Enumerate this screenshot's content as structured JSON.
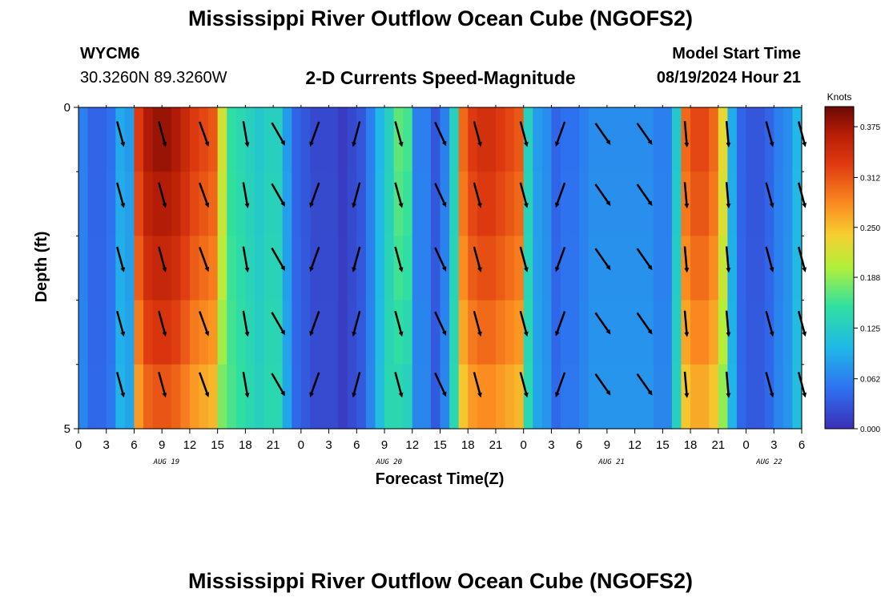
{
  "header": {
    "title": "Mississippi River Outflow Ocean Cube (NGOFS2)",
    "station_id": "WYCM6",
    "coordinates": "30.3260N  89.3260W",
    "subtitle": "2-D Currents Speed-Magnitude",
    "model_start_label": "Model Start Time",
    "model_start_time": "08/19/2024 Hour 21"
  },
  "footer": {
    "title": "Mississippi River Outflow Ocean Cube (NGOFS2)"
  },
  "chart_data": {
    "type": "heatmap",
    "xlabel": "Forecast Time(Z)",
    "ylabel": "Depth (ft)",
    "x_ticks": [
      "0",
      "3",
      "6",
      "9",
      "12",
      "15",
      "18",
      "21",
      "0",
      "3",
      "6",
      "9",
      "12",
      "15",
      "18",
      "21",
      "0",
      "3",
      "6",
      "9",
      "12",
      "15",
      "18",
      "21",
      "0",
      "3",
      "6"
    ],
    "date_labels": [
      {
        "label": "AUG 19",
        "hour": 9.5
      },
      {
        "label": "AUG 20",
        "hour": 33.5
      },
      {
        "label": "AUG 21",
        "hour": 57.5
      },
      {
        "label": "AUG 22",
        "hour": 74.5
      }
    ],
    "y_ticks": [
      "0",
      "5"
    ],
    "ylim": [
      0,
      5
    ],
    "xlim_hours": [
      0,
      78
    ],
    "colorbar": {
      "unit": "Knots",
      "min": 0,
      "max": 0.4,
      "tick_labels": [
        "0.375",
        "0.312",
        "0.250",
        "0.188",
        "0.125",
        "0.062",
        "0.000"
      ],
      "tick_values": [
        0.375,
        0.312,
        0.25,
        0.188,
        0.125,
        0.062,
        0.0
      ]
    },
    "speed_profile_knots": [
      0.06,
      0.04,
      0.04,
      0.05,
      0.09,
      0.08,
      0.33,
      0.37,
      0.38,
      0.38,
      0.37,
      0.35,
      0.33,
      0.32,
      0.31,
      0.22,
      0.15,
      0.14,
      0.13,
      0.12,
      0.13,
      0.13,
      0.08,
      0.04,
      0.03,
      0.02,
      0.02,
      0.02,
      0.01,
      0.02,
      0.03,
      0.06,
      0.1,
      0.13,
      0.17,
      0.16,
      0.06,
      0.06,
      0.03,
      0.06,
      0.13,
      0.3,
      0.33,
      0.34,
      0.34,
      0.33,
      0.32,
      0.31,
      0.13,
      0.08,
      0.07,
      0.04,
      0.05,
      0.05,
      0.06,
      0.07,
      0.07,
      0.07,
      0.07,
      0.07,
      0.07,
      0.07,
      0.06,
      0.06,
      0.12,
      0.3,
      0.32,
      0.32,
      0.3,
      0.23,
      0.09,
      0.04,
      0.03,
      0.03,
      0.04,
      0.06,
      0.07,
      0.1
    ],
    "current_direction_deg_sample": [
      {
        "hour": 4.5,
        "dir": 165
      },
      {
        "hour": 9,
        "dir": 165
      },
      {
        "hour": 13.5,
        "dir": 160
      },
      {
        "hour": 18,
        "dir": 170
      },
      {
        "hour": 21.5,
        "dir": 150
      },
      {
        "hour": 25.5,
        "dir": 200
      },
      {
        "hour": 30,
        "dir": 195
      },
      {
        "hour": 34.5,
        "dir": 165
      },
      {
        "hour": 39,
        "dir": 155
      },
      {
        "hour": 43,
        "dir": 165
      },
      {
        "hour": 48,
        "dir": 165
      },
      {
        "hour": 52,
        "dir": 200
      },
      {
        "hour": 56.5,
        "dir": 145
      },
      {
        "hour": 61,
        "dir": 145
      },
      {
        "hour": 65.5,
        "dir": 175
      },
      {
        "hour": 70,
        "dir": 175
      },
      {
        "hour": 74.5,
        "dir": 165
      },
      {
        "hour": 78,
        "dir": 165
      }
    ]
  }
}
